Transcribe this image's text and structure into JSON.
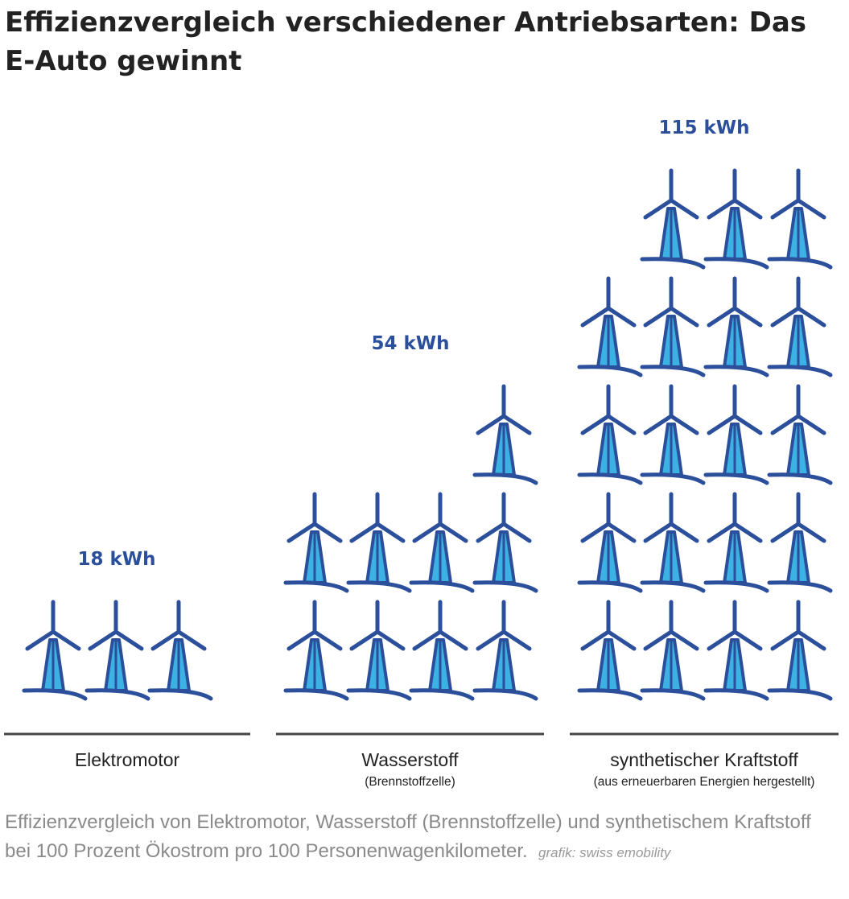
{
  "title": "Effizienzvergleich verschiedener Antriebsarten: Das E-Auto gewinnt",
  "caption": "Effizienzvergleich von Elektromotor, Wasserstoff (Brennstoffzelle) und synthetischem Kraftstoff bei 100 Prozent Ökostrom pro 100 Personenwagenkilometer.",
  "credit": "grafik: swiss emobility",
  "chart_data": {
    "type": "pictogram",
    "unit": "kWh",
    "icon": "wind-turbine-icon",
    "icon_value_kwh": 6,
    "colors": {
      "outline": "#2b4f9b",
      "fill": "#3cb1e3",
      "value_label": "#2b4f9b",
      "baseline": "#444444"
    },
    "categories": [
      {
        "label": "Elektromotor",
        "sublabel": "",
        "value": 18,
        "value_label": "18 kWh",
        "icons": 3
      },
      {
        "label": "Wasserstoff",
        "sublabel": "(Brennstoffzelle)",
        "value": 54,
        "value_label": "54 kWh",
        "icons": 9
      },
      {
        "label": "synthetischer Kraftstoff",
        "sublabel": "(aus erneuerbaren Energien hergestellt)",
        "value": 115,
        "value_label": "115 kWh",
        "icons": 19
      }
    ]
  }
}
